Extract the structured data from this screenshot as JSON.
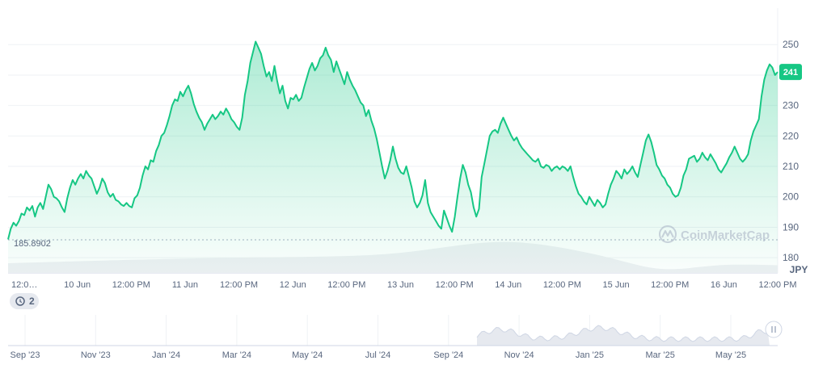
{
  "chart_data": {
    "type": "area",
    "currency": "JPY",
    "y_axis": {
      "ticks": [
        180,
        190,
        200,
        210,
        220,
        230,
        240,
        250
      ],
      "range": [
        175,
        262
      ],
      "side": "right"
    },
    "x_axis": {
      "tick_labels": [
        "12:0…",
        "10 Jun",
        "12:00 PM",
        "11 Jun",
        "12:00 PM",
        "12 Jun",
        "12:00 PM",
        "13 Jun",
        "12:00 PM",
        "14 Jun",
        "12:00 PM",
        "15 Jun",
        "12:00 PM",
        "16 Jun",
        "12:00 PM"
      ]
    },
    "start_value": "185.8902",
    "current_price": "241",
    "grid": true,
    "series": [
      {
        "values": [
          186.0,
          189.5,
          191.5,
          190.5,
          192.0,
          194.5,
          194.0,
          196.5,
          195.5,
          197.0,
          193.5,
          196.5,
          198.0,
          196.0,
          200.0,
          204.0,
          202.5,
          200.0,
          199.5,
          198.5,
          196.5,
          195.0,
          199.5,
          203.0,
          205.5,
          204.0,
          206.0,
          207.5,
          206.0,
          208.5,
          207.0,
          206.0,
          203.5,
          201.0,
          203.0,
          206.0,
          204.5,
          201.5,
          200.0,
          201.0,
          199.0,
          198.5,
          197.5,
          197.0,
          198.0,
          197.0,
          196.5,
          199.5,
          200.5,
          203.0,
          207.0,
          210.0,
          209.0,
          212.0,
          211.5,
          215.0,
          217.0,
          220.0,
          221.0,
          223.5,
          226.5,
          230.0,
          232.0,
          231.5,
          234.5,
          233.0,
          235.0,
          236.5,
          234.0,
          230.5,
          228.0,
          226.0,
          224.5,
          222.0,
          224.0,
          225.5,
          227.0,
          225.5,
          226.5,
          228.0,
          227.0,
          229.0,
          227.5,
          225.5,
          224.5,
          223.0,
          222.0,
          226.0,
          233.5,
          238.0,
          244.0,
          247.5,
          251.0,
          249.0,
          247.0,
          243.0,
          239.5,
          241.0,
          238.0,
          243.0,
          238.0,
          234.0,
          236.5,
          231.5,
          229.0,
          232.5,
          232.0,
          233.5,
          231.5,
          232.5,
          236.0,
          239.0,
          242.0,
          244.0,
          241.5,
          243.0,
          245.5,
          246.5,
          249.0,
          246.5,
          245.0,
          241.0,
          244.5,
          242.0,
          239.5,
          237.0,
          241.0,
          238.5,
          236.5,
          235.0,
          233.0,
          231.0,
          230.0,
          226.5,
          228.5,
          225.0,
          222.5,
          219.0,
          214.5,
          210.0,
          206.0,
          208.5,
          212.0,
          216.5,
          212.5,
          209.5,
          208.0,
          207.5,
          210.0,
          206.5,
          203.0,
          198.5,
          196.5,
          198.0,
          200.5,
          205.5,
          198.0,
          195.0,
          193.5,
          192.0,
          190.5,
          189.5,
          195.5,
          193.0,
          190.5,
          188.5,
          193.5,
          200.0,
          206.0,
          210.5,
          208.0,
          204.0,
          201.5,
          196.5,
          193.5,
          196.0,
          206.5,
          211.0,
          215.5,
          220.0,
          221.5,
          222.0,
          221.0,
          224.0,
          226.0,
          224.0,
          222.0,
          220.0,
          218.5,
          219.5,
          217.5,
          216.0,
          215.0,
          214.0,
          213.0,
          212.0,
          211.5,
          212.5,
          210.0,
          209.5,
          210.5,
          210.0,
          208.5,
          209.5,
          210.0,
          209.0,
          210.0,
          209.5,
          208.5,
          210.0,
          206.5,
          203.5,
          201.0,
          200.0,
          198.5,
          197.5,
          200.0,
          198.5,
          197.0,
          199.0,
          198.0,
          196.5,
          197.5,
          201.0,
          204.0,
          206.0,
          208.5,
          207.5,
          206.0,
          209.0,
          207.5,
          208.5,
          210.0,
          208.0,
          206.5,
          210.5,
          214.5,
          218.5,
          220.5,
          218.0,
          214.5,
          210.5,
          209.0,
          207.0,
          206.0,
          204.0,
          203.0,
          201.0,
          200.0,
          200.5,
          203.0,
          207.0,
          209.0,
          212.5,
          213.0,
          213.5,
          211.5,
          212.5,
          214.5,
          213.0,
          212.0,
          214.0,
          212.5,
          211.0,
          209.0,
          208.0,
          209.5,
          211.0,
          213.0,
          214.5,
          216.5,
          214.5,
          212.5,
          211.5,
          212.5,
          214.0,
          218.5,
          221.5,
          223.5,
          225.5,
          233.0,
          238.5,
          241.5,
          243.5,
          242.5,
          240.0,
          241.0
        ]
      }
    ]
  },
  "watermark": "CoinMarketCap",
  "history_badge": "2",
  "navigator": {
    "tick_labels": [
      "Sep '23",
      "Nov '23",
      "Jan '24",
      "Mar '24",
      "May '24",
      "Jul '24",
      "Sep '24",
      "Nov '24",
      "Jan '25",
      "Mar '25",
      "May '25"
    ]
  }
}
